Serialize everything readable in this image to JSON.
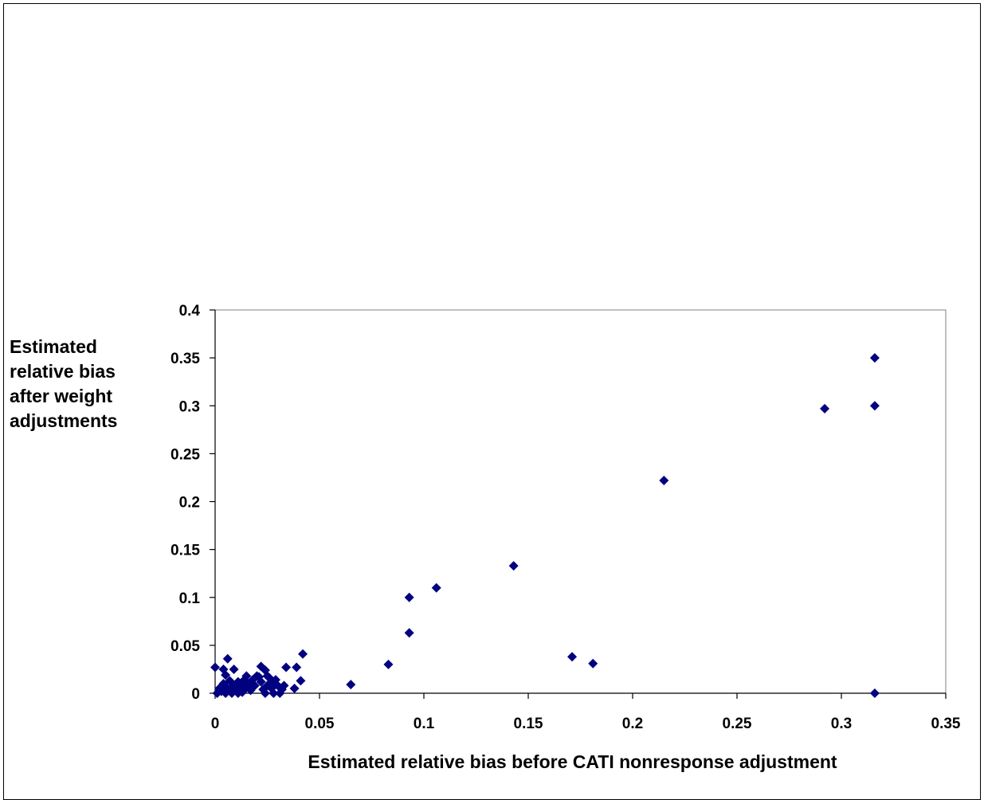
{
  "chart_data": {
    "type": "scatter",
    "xlabel": "Estimated relative bias before CATI nonresponse adjustment",
    "ylabel_lines": [
      "Estimated",
      "relative bias",
      "after weight",
      "adjustments"
    ],
    "xlim": [
      0,
      0.35
    ],
    "ylim": [
      0,
      0.4
    ],
    "x_ticks": [
      0,
      0.05,
      0.1,
      0.15,
      0.2,
      0.25,
      0.3,
      0.35
    ],
    "x_tick_labels": [
      "0",
      "0.05",
      "0.1",
      "0.15",
      "0.2",
      "0.25",
      "0.3",
      "0.35"
    ],
    "y_ticks": [
      0,
      0.05,
      0.1,
      0.15,
      0.2,
      0.25,
      0.3,
      0.35,
      0.4
    ],
    "y_tick_labels": [
      "0",
      "0.05",
      "0.1",
      "0.15",
      "0.2",
      "0.25",
      "0.3",
      "0.35",
      "0.4"
    ],
    "grid": false,
    "marker_color": "#000080",
    "marker": "diamond",
    "points": [
      [
        0.0,
        0.027
      ],
      [
        0.001,
        0.0
      ],
      [
        0.002,
        0.005
      ],
      [
        0.003,
        0.002
      ],
      [
        0.004,
        0.025
      ],
      [
        0.004,
        0.01
      ],
      [
        0.005,
        0.0
      ],
      [
        0.005,
        0.019
      ],
      [
        0.006,
        0.036
      ],
      [
        0.006,
        0.005
      ],
      [
        0.007,
        0.013
      ],
      [
        0.008,
        0.003
      ],
      [
        0.008,
        0.0
      ],
      [
        0.009,
        0.025
      ],
      [
        0.009,
        0.008
      ],
      [
        0.01,
        0.003
      ],
      [
        0.011,
        0.012
      ],
      [
        0.011,
        0.0
      ],
      [
        0.012,
        0.006
      ],
      [
        0.012,
        0.009
      ],
      [
        0.013,
        0.001
      ],
      [
        0.014,
        0.014
      ],
      [
        0.014,
        0.004
      ],
      [
        0.015,
        0.018
      ],
      [
        0.016,
        0.009
      ],
      [
        0.017,
        0.003
      ],
      [
        0.018,
        0.014
      ],
      [
        0.019,
        0.008
      ],
      [
        0.02,
        0.018
      ],
      [
        0.021,
        0.017
      ],
      [
        0.022,
        0.012
      ],
      [
        0.022,
        0.028
      ],
      [
        0.023,
        0.004
      ],
      [
        0.024,
        0.0
      ],
      [
        0.024,
        0.024
      ],
      [
        0.025,
        0.018
      ],
      [
        0.025,
        0.008
      ],
      [
        0.026,
        0.016
      ],
      [
        0.027,
        0.005
      ],
      [
        0.027,
        0.011
      ],
      [
        0.028,
        0.0
      ],
      [
        0.029,
        0.014
      ],
      [
        0.03,
        0.008
      ],
      [
        0.031,
        0.0
      ],
      [
        0.032,
        0.004
      ],
      [
        0.033,
        0.008
      ],
      [
        0.034,
        0.027
      ],
      [
        0.038,
        0.005
      ],
      [
        0.039,
        0.027
      ],
      [
        0.041,
        0.013
      ],
      [
        0.042,
        0.041
      ],
      [
        0.065,
        0.009
      ],
      [
        0.083,
        0.03
      ],
      [
        0.093,
        0.063
      ],
      [
        0.093,
        0.1
      ],
      [
        0.106,
        0.11
      ],
      [
        0.143,
        0.133
      ],
      [
        0.171,
        0.038
      ],
      [
        0.181,
        0.031
      ],
      [
        0.215,
        0.222
      ],
      [
        0.292,
        0.297
      ],
      [
        0.316,
        0.35
      ],
      [
        0.316,
        0.3
      ],
      [
        0.316,
        0.0
      ]
    ]
  }
}
